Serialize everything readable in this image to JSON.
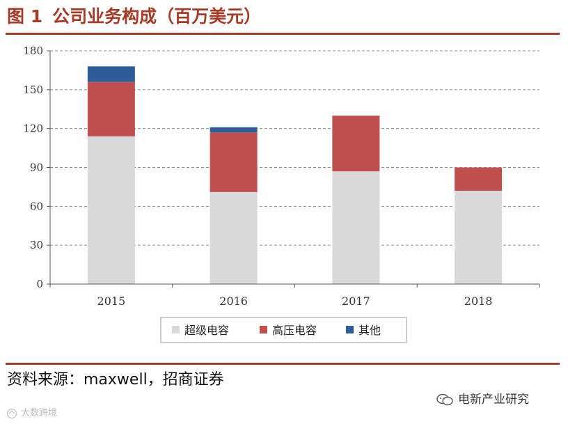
{
  "figure": {
    "label": "图 1",
    "title": "公司业务构成（百万美元）"
  },
  "chart_data": {
    "type": "stacked-bar",
    "title": "公司业务构成（百万美元）",
    "categories": [
      "2015",
      "2016",
      "2017",
      "2018"
    ],
    "series": [
      {
        "name": "超级电容",
        "color": "#d9d9d9",
        "values": [
          114,
          71,
          87,
          72
        ]
      },
      {
        "name": "高压电容",
        "color": "#c0504d",
        "values": [
          42,
          46,
          43,
          18
        ]
      },
      {
        "name": "其他",
        "color": "#2e5d99",
        "values": [
          12,
          4,
          0,
          0
        ]
      }
    ],
    "yticks": [
      0,
      30,
      60,
      90,
      120,
      150,
      180
    ],
    "ylim": [
      0,
      180
    ],
    "grid": "dashed-horizontal",
    "legend_position": "bottom"
  },
  "source": "资料来源：maxwell，招商证券",
  "watermark": "电新产业研究",
  "corner_mark": "大数跨境"
}
